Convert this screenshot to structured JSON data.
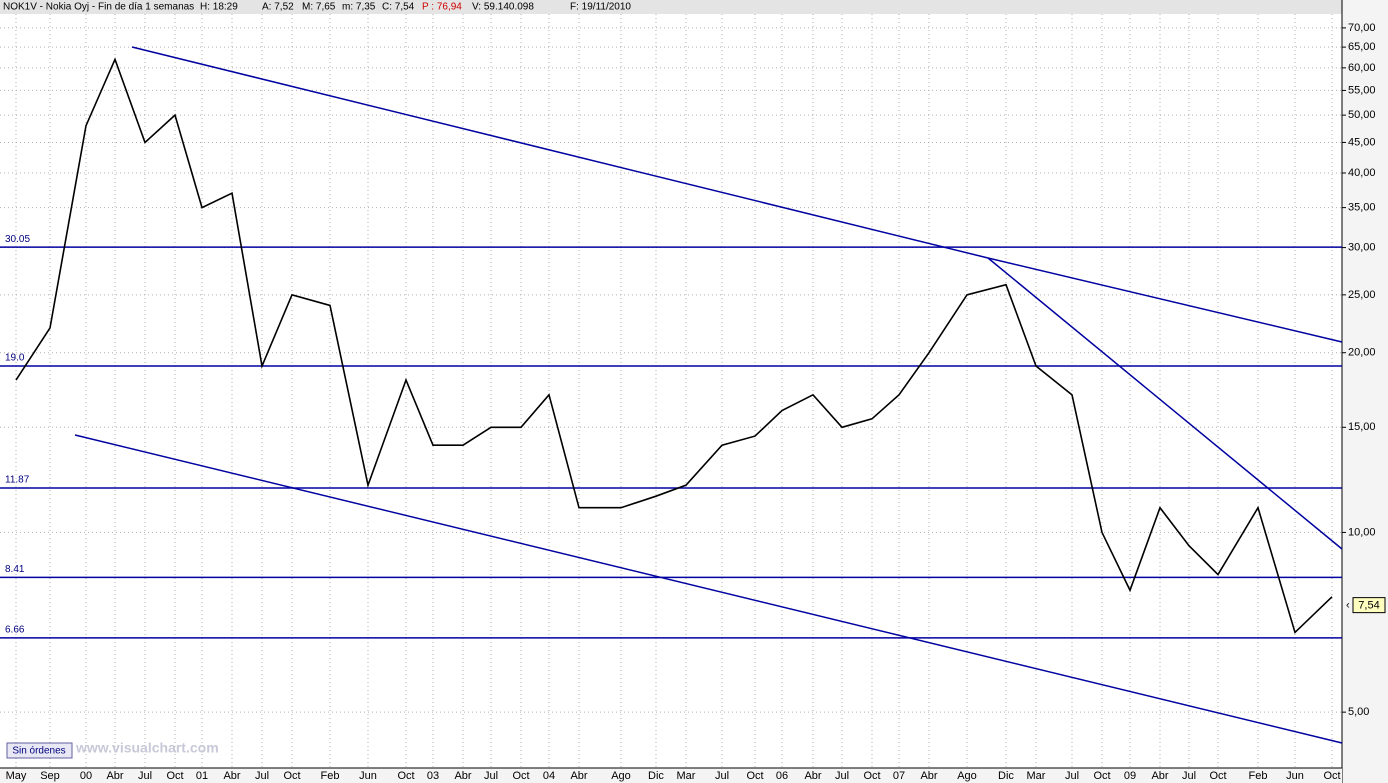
{
  "chart_data": {
    "type": "line",
    "title": "NOK1V - Nokia Oyj - Fin de día 1 semanas",
    "quote": [
      "H: 18:29",
      "A: 7,52",
      "M: 7,65",
      "m: 7,35",
      "C: 7,54",
      "P : 76,94",
      "V: 59.140.098",
      "F: 19/11/2010"
    ],
    "categories": [
      "May",
      "Sep",
      "00",
      "Abr",
      "Jul",
      "Oct",
      "01",
      "Abr",
      "Jul",
      "Oct",
      "Feb",
      "Jun",
      "Oct",
      "03",
      "Abr",
      "Jul",
      "Oct",
      "04",
      "Abr",
      "Ago",
      "Dic",
      "Mar",
      "Jul",
      "Oct",
      "06",
      "Abr",
      "Jul",
      "Oct",
      "07",
      "Abr",
      "Ago",
      "Dic",
      "Mar",
      "Jul",
      "Oct",
      "09",
      "Abr",
      "Jul",
      "Oct",
      "Feb",
      "Jun",
      "Oct"
    ],
    "values": [
      18,
      22,
      48,
      62,
      45,
      50,
      35,
      37,
      19,
      25,
      24,
      12,
      18,
      14,
      14,
      15,
      15,
      17,
      11,
      11,
      11.5,
      12,
      14,
      14.5,
      16,
      17,
      15,
      15.5,
      17,
      20,
      25,
      26,
      19,
      17,
      10,
      8,
      11,
      9.5,
      8.5,
      11,
      6.8,
      7.8
    ],
    "color": "#000000",
    "log_scale": true,
    "ylim": [
      4,
      75
    ],
    "yticks": [
      {
        "value": 70,
        "label": "70,00"
      },
      {
        "value": 65,
        "label": "65,00"
      },
      {
        "value": 60,
        "label": "60,00"
      },
      {
        "value": 55,
        "label": "55,00"
      },
      {
        "value": 50,
        "label": "50,00"
      },
      {
        "value": 45,
        "label": "45,00"
      },
      {
        "value": 40,
        "label": "40,00"
      },
      {
        "value": 35,
        "label": "35,00"
      },
      {
        "value": 30,
        "label": "30,00"
      },
      {
        "value": 25,
        "label": "25,00"
      },
      {
        "value": 20,
        "label": "20,00"
      },
      {
        "value": 15,
        "label": "15,00"
      },
      {
        "value": 10,
        "label": "10,00"
      },
      {
        "value": 5,
        "label": "5,00"
      }
    ],
    "grid": true,
    "levels": [
      30.05,
      {
        "value": 19,
        "label": "19.0"
      },
      11.87,
      8.41,
      6.66
    ],
    "level_color": "#0000a0",
    "last": {
      "value": 7.54,
      "label": "7,54"
    },
    "watermark": "www.visualchart.com",
    "button": "Sin órdenes"
  }
}
